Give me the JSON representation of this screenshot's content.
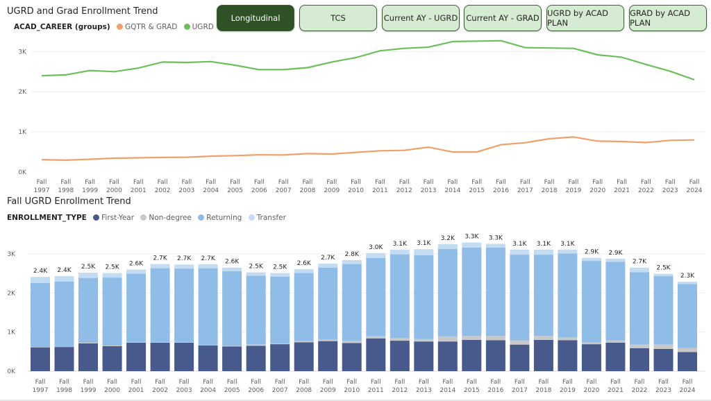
{
  "nav": {
    "buttons": [
      {
        "label": "Longitudinal",
        "active": true
      },
      {
        "label": "TCS",
        "active": false
      },
      {
        "label": "Current AY - UGRD",
        "active": false
      },
      {
        "label": "Current AY - GRAD",
        "active": false
      },
      {
        "label": "UGRD by ACAD PLAN",
        "active": false
      },
      {
        "label": "GRAD by ACAD PLAN",
        "active": false
      }
    ]
  },
  "colors": {
    "ugrd_line": "#6cbf5a",
    "grad_line": "#f0a06a",
    "first_year": "#485a8c",
    "non_degree": "#c8c8c8",
    "returning": "#8fbde8",
    "transfer": "#c4dcf2",
    "active_button": "#2e5126",
    "button": "#d6ecd2"
  },
  "chart_data": [
    {
      "type": "line",
      "title": "UGRD and Grad Enrollment Trend",
      "legend_title": "ACAD_CAREER (groups)",
      "legend_position": "top-left",
      "x": [
        "Fall 1997",
        "Fall 1998",
        "Fall 1999",
        "Fall 2000",
        "Fall 2001",
        "Fall 2002",
        "Fall 2003",
        "Fall 2004",
        "Fall 2005",
        "Fall 2006",
        "Fall 2007",
        "Fall 2008",
        "Fall 2009",
        "Fall 2010",
        "Fall 2011",
        "Fall 2012",
        "Fall 2013",
        "Fall 2014",
        "Fall 2015",
        "Fall 2016",
        "Fall 2017",
        "Fall 2018",
        "Fall 2019",
        "Fall 2020",
        "Fall 2021",
        "Fall 2022",
        "Fall 2023",
        "Fall 2024"
      ],
      "series": [
        {
          "name": "GQTR & GRAD",
          "values": [
            310,
            295,
            320,
            345,
            355,
            365,
            370,
            395,
            410,
            430,
            425,
            460,
            450,
            490,
            530,
            540,
            620,
            500,
            500,
            680,
            730,
            830,
            875,
            770,
            760,
            735,
            790,
            800
          ]
        },
        {
          "name": "UGRD",
          "values": [
            2400,
            2420,
            2530,
            2500,
            2590,
            2740,
            2730,
            2750,
            2660,
            2550,
            2550,
            2600,
            2740,
            2850,
            3020,
            3080,
            3110,
            3250,
            3260,
            3270,
            3100,
            3090,
            3080,
            2920,
            2860,
            2680,
            2510,
            2300
          ]
        }
      ],
      "yticks": [
        "0K",
        "1K",
        "2K",
        "3K"
      ],
      "ylim": [
        0,
        3300
      ],
      "grid": true
    },
    {
      "type": "bar",
      "stacked": true,
      "title": "Fall UGRD Enrollment Trend",
      "legend_title": "ENROLLMENT_TYPE",
      "legend_position": "top-left",
      "categories": [
        "Fall 1997",
        "Fall 1998",
        "Fall 1999",
        "Fall 2000",
        "Fall 2001",
        "Fall 2002",
        "Fall 2003",
        "Fall 2004",
        "Fall 2005",
        "Fall 2006",
        "Fall 2007",
        "Fall 2008",
        "Fall 2009",
        "Fall 2010",
        "Fall 2011",
        "Fall 2012",
        "Fall 2013",
        "Fall 2014",
        "Fall 2015",
        "Fall 2016",
        "Fall 2017",
        "Fall 2018",
        "Fall 2019",
        "Fall 2020",
        "Fall 2021",
        "Fall 2022",
        "Fall 2023",
        "Fall 2024"
      ],
      "series": [
        {
          "name": "First-Year",
          "values": [
            610,
            620,
            710,
            640,
            730,
            730,
            730,
            660,
            630,
            650,
            690,
            740,
            770,
            720,
            840,
            780,
            760,
            760,
            800,
            790,
            680,
            800,
            790,
            690,
            730,
            590,
            570,
            490
          ]
        },
        {
          "name": "Non-degree",
          "values": [
            10,
            10,
            15,
            15,
            15,
            15,
            15,
            15,
            20,
            30,
            20,
            30,
            40,
            50,
            50,
            70,
            60,
            130,
            100,
            110,
            110,
            100,
            70,
            40,
            60,
            90,
            110,
            100
          ]
        },
        {
          "name": "Returning",
          "values": [
            1640,
            1660,
            1660,
            1740,
            1750,
            1890,
            1880,
            1960,
            1910,
            1760,
            1710,
            1740,
            1840,
            1970,
            2010,
            2140,
            2150,
            2240,
            2260,
            2260,
            2190,
            2080,
            2150,
            2090,
            2010,
            1850,
            1750,
            1640
          ]
        },
        {
          "name": "Transfer",
          "values": [
            150,
            140,
            135,
            115,
            105,
            105,
            105,
            100,
            90,
            90,
            90,
            100,
            100,
            100,
            120,
            120,
            150,
            120,
            130,
            100,
            130,
            130,
            100,
            80,
            80,
            120,
            60,
            60
          ]
        }
      ],
      "totals_labels": [
        "2.4K",
        "2.4K",
        "2.5K",
        "2.5K",
        "2.6K",
        "2.7K",
        "2.7K",
        "2.7K",
        "2.6K",
        "2.5K",
        "2.5K",
        "2.6K",
        "2.7K",
        "2.8K",
        "3.0K",
        "3.1K",
        "3.1K",
        "3.2K",
        "3.3K",
        "3.3K",
        "3.1K",
        "3.1K",
        "3.1K",
        "2.9K",
        "2.9K",
        "2.7K",
        "2.5K",
        "2.3K"
      ],
      "yticks": [
        "0K",
        "1K",
        "2K",
        "3K"
      ],
      "ylim": [
        0,
        3300
      ],
      "grid": true
    }
  ]
}
